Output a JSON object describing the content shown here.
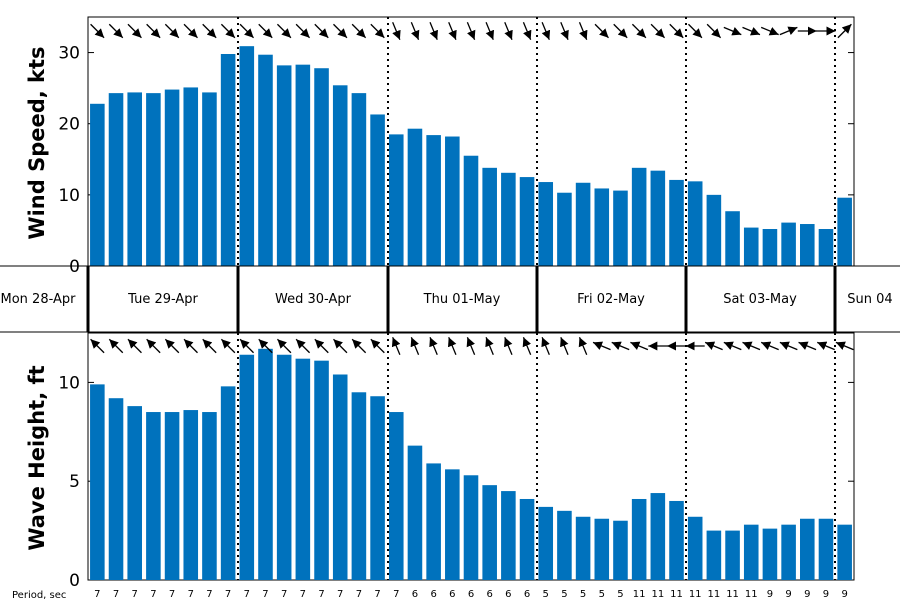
{
  "chart_data": [
    {
      "type": "bar",
      "ylabel": "Wind Speed, kts",
      "ylim": [
        0,
        35
      ],
      "yticks": [
        0,
        10,
        20,
        30
      ],
      "bar_color": "#0072bd",
      "values": [
        22.8,
        24.3,
        24.4,
        24.3,
        24.8,
        25.1,
        24.4,
        29.8,
        30.9,
        29.7,
        28.2,
        28.3,
        27.8,
        25.4,
        24.3,
        21.3,
        18.5,
        19.3,
        18.4,
        18.2,
        15.5,
        13.8,
        13.1,
        12.5,
        11.8,
        10.3,
        11.7,
        10.9,
        10.6,
        13.8,
        13.4,
        12.1,
        11.9,
        10.0,
        7.7,
        5.4,
        5.2,
        6.1,
        5.9,
        5.2,
        9.6
      ],
      "arrows": [
        "se",
        "se",
        "se",
        "se",
        "se",
        "se",
        "se",
        "se",
        "se",
        "se",
        "se",
        "se",
        "se",
        "se",
        "se",
        "se",
        "sse",
        "sse",
        "sse",
        "sse",
        "sse",
        "sse",
        "sse",
        "sse",
        "sse",
        "sse",
        "sse",
        "se",
        "se",
        "se",
        "se",
        "se",
        "se",
        "se",
        "ese",
        "ese",
        "ese",
        "ene",
        "e",
        "e",
        "ne"
      ]
    },
    {
      "type": "bar",
      "ylabel": "Wave Height, ft",
      "ylim": [
        0,
        12.5
      ],
      "yticks": [
        0,
        5,
        10
      ],
      "bar_color": "#0072bd",
      "values": [
        9.9,
        9.2,
        8.8,
        8.5,
        8.5,
        8.6,
        8.5,
        9.8,
        11.4,
        11.7,
        11.4,
        11.2,
        11.1,
        10.4,
        9.5,
        9.3,
        8.5,
        6.8,
        5.9,
        5.6,
        5.3,
        4.8,
        4.5,
        4.1,
        3.7,
        3.5,
        3.2,
        3.1,
        3.0,
        4.1,
        4.4,
        4.0,
        3.2,
        2.5,
        2.5,
        2.8,
        2.6,
        2.8,
        3.1,
        3.1,
        2.8
      ],
      "arrows": [
        "nw",
        "nw",
        "nw",
        "nw",
        "nw",
        "nw",
        "nw",
        "nw",
        "nw",
        "nw",
        "nw",
        "nw",
        "nw",
        "nw",
        "nw",
        "nw",
        "nnw",
        "nnw",
        "nnw",
        "nnw",
        "nnw",
        "nnw",
        "nnw",
        "nnw",
        "nnw",
        "nnw",
        "nnw",
        "wnw",
        "wnw",
        "wnw",
        "w",
        "w",
        "w",
        "wnw",
        "wnw",
        "wnw",
        "wnw",
        "wnw",
        "wnw",
        "wnw",
        "wnw"
      ]
    }
  ],
  "days": [
    "Mon 28-Apr",
    "Tue 29-Apr",
    "Wed 30-Apr",
    "Thu 01-May",
    "Fri 02-May",
    "Sat 03-May",
    "Sun 04"
  ],
  "period_label": "Period, sec",
  "periods": [
    "7",
    "7",
    "7",
    "7",
    "7",
    "7",
    "7",
    "7",
    "7",
    "7",
    "7",
    "7",
    "7",
    "7",
    "7",
    "7",
    "7",
    "6",
    "6",
    "6",
    "6",
    "6",
    "6",
    "6",
    "5",
    "5",
    "5",
    "5",
    "5",
    "11",
    "11",
    "11",
    "11",
    "11",
    "11",
    "11",
    "9",
    "9",
    "9",
    "9",
    "9"
  ]
}
